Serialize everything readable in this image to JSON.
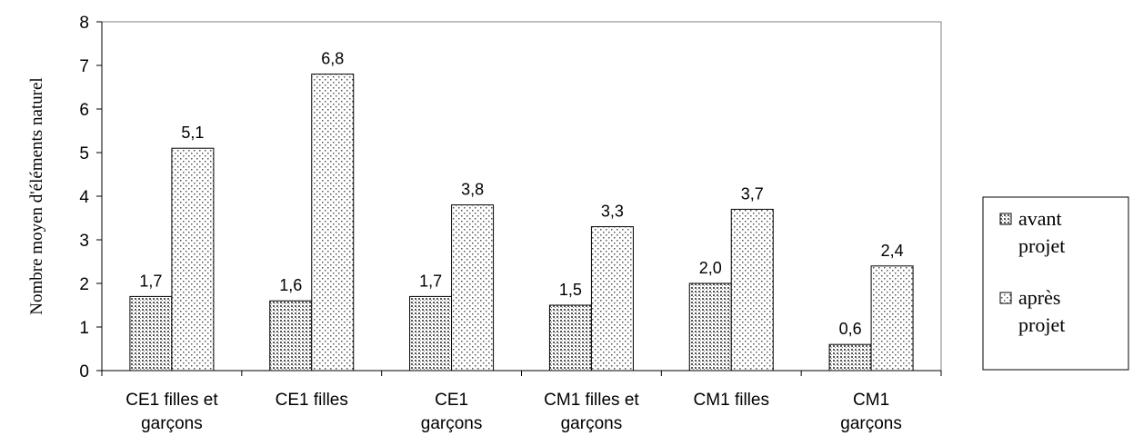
{
  "chart_data": {
    "type": "bar",
    "categories": [
      [
        "CE1 filles et",
        "garçons"
      ],
      [
        "CE1 filles"
      ],
      [
        "CE1",
        "garçons"
      ],
      [
        "CM1 filles et",
        "garçons"
      ],
      [
        "CM1 filles"
      ],
      [
        "CM1",
        "garçons"
      ]
    ],
    "series": [
      {
        "name": [
          "avant",
          "projet"
        ],
        "pattern": "dots-dense",
        "values": [
          1.7,
          1.6,
          1.7,
          1.5,
          2.0,
          0.6
        ],
        "labels": [
          "1,7",
          "1,6",
          "1,7",
          "1,5",
          "2,0",
          "0,6"
        ]
      },
      {
        "name": [
          "après",
          "projet"
        ],
        "pattern": "dots-sparse",
        "values": [
          5.1,
          6.8,
          3.8,
          3.3,
          3.7,
          2.4
        ],
        "labels": [
          "5,1",
          "6,8",
          "3,8",
          "3,3",
          "3,7",
          "2,4"
        ]
      }
    ],
    "ylabel": "Nombre moyen d'éléments naturel",
    "xlabel": "",
    "ylim": [
      0,
      8
    ],
    "yticks": [
      "0",
      "1",
      "2",
      "3",
      "4",
      "5",
      "6",
      "7",
      "8"
    ],
    "grid": false,
    "legend_position": "right",
    "colors": {
      "bar_fill": "#ffffff",
      "pattern_ink": "#555555",
      "outline": "#000000",
      "plot_border": "#808080"
    }
  }
}
